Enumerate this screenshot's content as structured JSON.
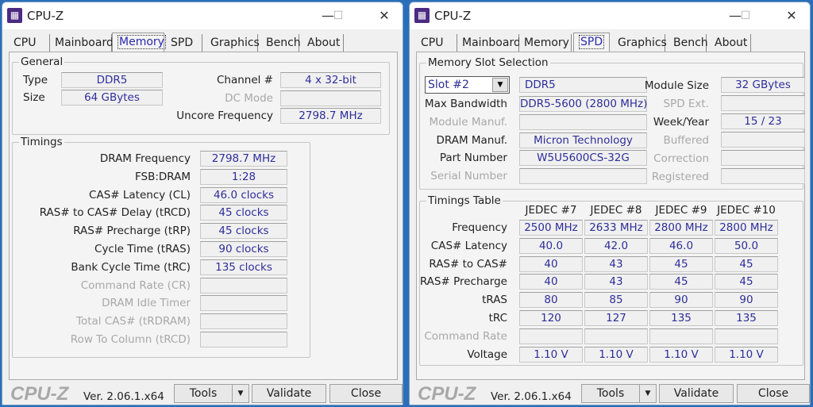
{
  "app_title": "CPU-Z",
  "tabs": [
    "CPU",
    "Mainboard",
    "Memory",
    "SPD",
    "Graphics",
    "Bench",
    "About"
  ],
  "footer": {
    "logo": "CPU-Z",
    "version": "Ver. 2.06.1.x64",
    "tools": "Tools",
    "validate": "Validate",
    "close": "Close"
  },
  "memory_window": {
    "active_tab": "Memory",
    "general": {
      "title": "General",
      "left": [
        {
          "label": "Type",
          "value": "DDR5"
        },
        {
          "label": "Size",
          "value": "64 GBytes"
        }
      ],
      "right": [
        {
          "label": "Channel #",
          "value": "4 x 32-bit"
        },
        {
          "label": "DC Mode",
          "value": "",
          "dim": true
        },
        {
          "label": "Uncore Frequency",
          "value": "2798.7 MHz"
        }
      ]
    },
    "timings": {
      "title": "Timings",
      "rows": [
        {
          "label": "DRAM Frequency",
          "value": "2798.7 MHz"
        },
        {
          "label": "FSB:DRAM",
          "value": "1:28"
        },
        {
          "label": "CAS# Latency (CL)",
          "value": "46.0 clocks"
        },
        {
          "label": "RAS# to CAS# Delay (tRCD)",
          "value": "45 clocks"
        },
        {
          "label": "RAS# Precharge (tRP)",
          "value": "45 clocks"
        },
        {
          "label": "Cycle Time (tRAS)",
          "value": "90 clocks"
        },
        {
          "label": "Bank Cycle Time (tRC)",
          "value": "135 clocks"
        },
        {
          "label": "Command Rate (CR)",
          "value": "",
          "dim": true
        },
        {
          "label": "DRAM Idle Timer",
          "value": "",
          "dim": true
        },
        {
          "label": "Total CAS# (tRDRAM)",
          "value": "",
          "dim": true
        },
        {
          "label": "Row To Column (tRCD)",
          "value": "",
          "dim": true
        }
      ]
    }
  },
  "spd_window": {
    "active_tab": "SPD",
    "slot_selection": {
      "title": "Memory Slot Selection",
      "slot": "Slot #2",
      "type": "DDR5",
      "left": [
        {
          "label": "Max Bandwidth",
          "value": "DDR5-5600 (2800 MHz)"
        },
        {
          "label": "Module Manuf.",
          "value": "",
          "dim": true
        },
        {
          "label": "DRAM Manuf.",
          "value": "Micron Technology"
        },
        {
          "label": "Part Number",
          "value": "W5U5600CS-32G"
        },
        {
          "label": "Serial Number",
          "value": "",
          "dim": true
        }
      ],
      "right": [
        {
          "label": "Module Size",
          "value": "32 GBytes"
        },
        {
          "label": "SPD Ext.",
          "value": "",
          "dim": true
        },
        {
          "label": "Week/Year",
          "value": "15 / 23"
        },
        {
          "label": "Buffered",
          "value": "",
          "dim": true
        },
        {
          "label": "Correction",
          "value": "",
          "dim": true
        },
        {
          "label": "Registered",
          "value": "",
          "dim": true
        }
      ]
    },
    "timings_table": {
      "title": "Timings Table",
      "columns": [
        "JEDEC #7",
        "JEDEC #8",
        "JEDEC #9",
        "JEDEC #10"
      ],
      "rows": [
        {
          "label": "Frequency",
          "values": [
            "2500 MHz",
            "2633 MHz",
            "2800 MHz",
            "2800 MHz"
          ]
        },
        {
          "label": "CAS# Latency",
          "values": [
            "40.0",
            "42.0",
            "46.0",
            "50.0"
          ]
        },
        {
          "label": "RAS# to CAS#",
          "values": [
            "40",
            "43",
            "45",
            "45"
          ]
        },
        {
          "label": "RAS# Precharge",
          "values": [
            "40",
            "43",
            "45",
            "45"
          ]
        },
        {
          "label": "tRAS",
          "values": [
            "80",
            "85",
            "90",
            "90"
          ]
        },
        {
          "label": "tRC",
          "values": [
            "120",
            "127",
            "135",
            "135"
          ]
        },
        {
          "label": "Command Rate",
          "values": [
            "",
            "",
            "",
            ""
          ],
          "dim": true
        },
        {
          "label": "Voltage",
          "values": [
            "1.10 V",
            "1.10 V",
            "1.10 V",
            "1.10 V"
          ]
        }
      ]
    }
  }
}
